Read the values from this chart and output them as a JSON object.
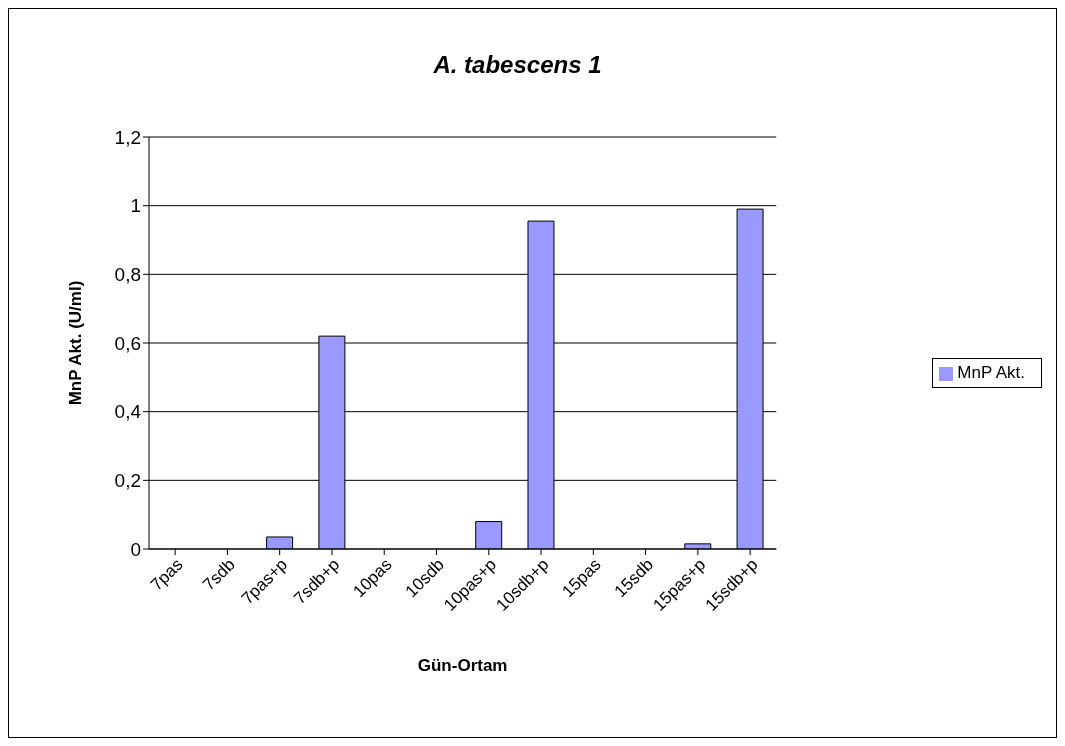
{
  "chart_data": {
    "type": "bar",
    "title": "A. tabescens 1",
    "xlabel": "Gün-Ortam",
    "ylabel": "MnP Akt. (U/ml)",
    "categories": [
      "7pas",
      "7sdb",
      "7pas+p",
      "7sdb+p",
      "10pas",
      "10sdb",
      "10pas+p",
      "10sdb+p",
      "15pas",
      "15sdb",
      "15pas+p",
      "15sdb+p"
    ],
    "series": [
      {
        "name": "MnP Akt.",
        "color": "#9999ff",
        "values": [
          0,
          0,
          0.035,
          0.62,
          0,
          0,
          0.08,
          0.955,
          0,
          0,
          0.015,
          0.99
        ]
      }
    ],
    "ylim": [
      0,
      1.2
    ],
    "yticks": [
      0,
      {
        "value": 0.2,
        "label": "0,2"
      },
      {
        "value": 0.4,
        "label": "0,4"
      },
      {
        "value": 0.6,
        "label": "0,6"
      },
      {
        "value": 0.8,
        "label": "0,8"
      },
      1,
      {
        "value": 1.2,
        "label": "1,2"
      }
    ],
    "grid": "y",
    "legend": "right"
  }
}
